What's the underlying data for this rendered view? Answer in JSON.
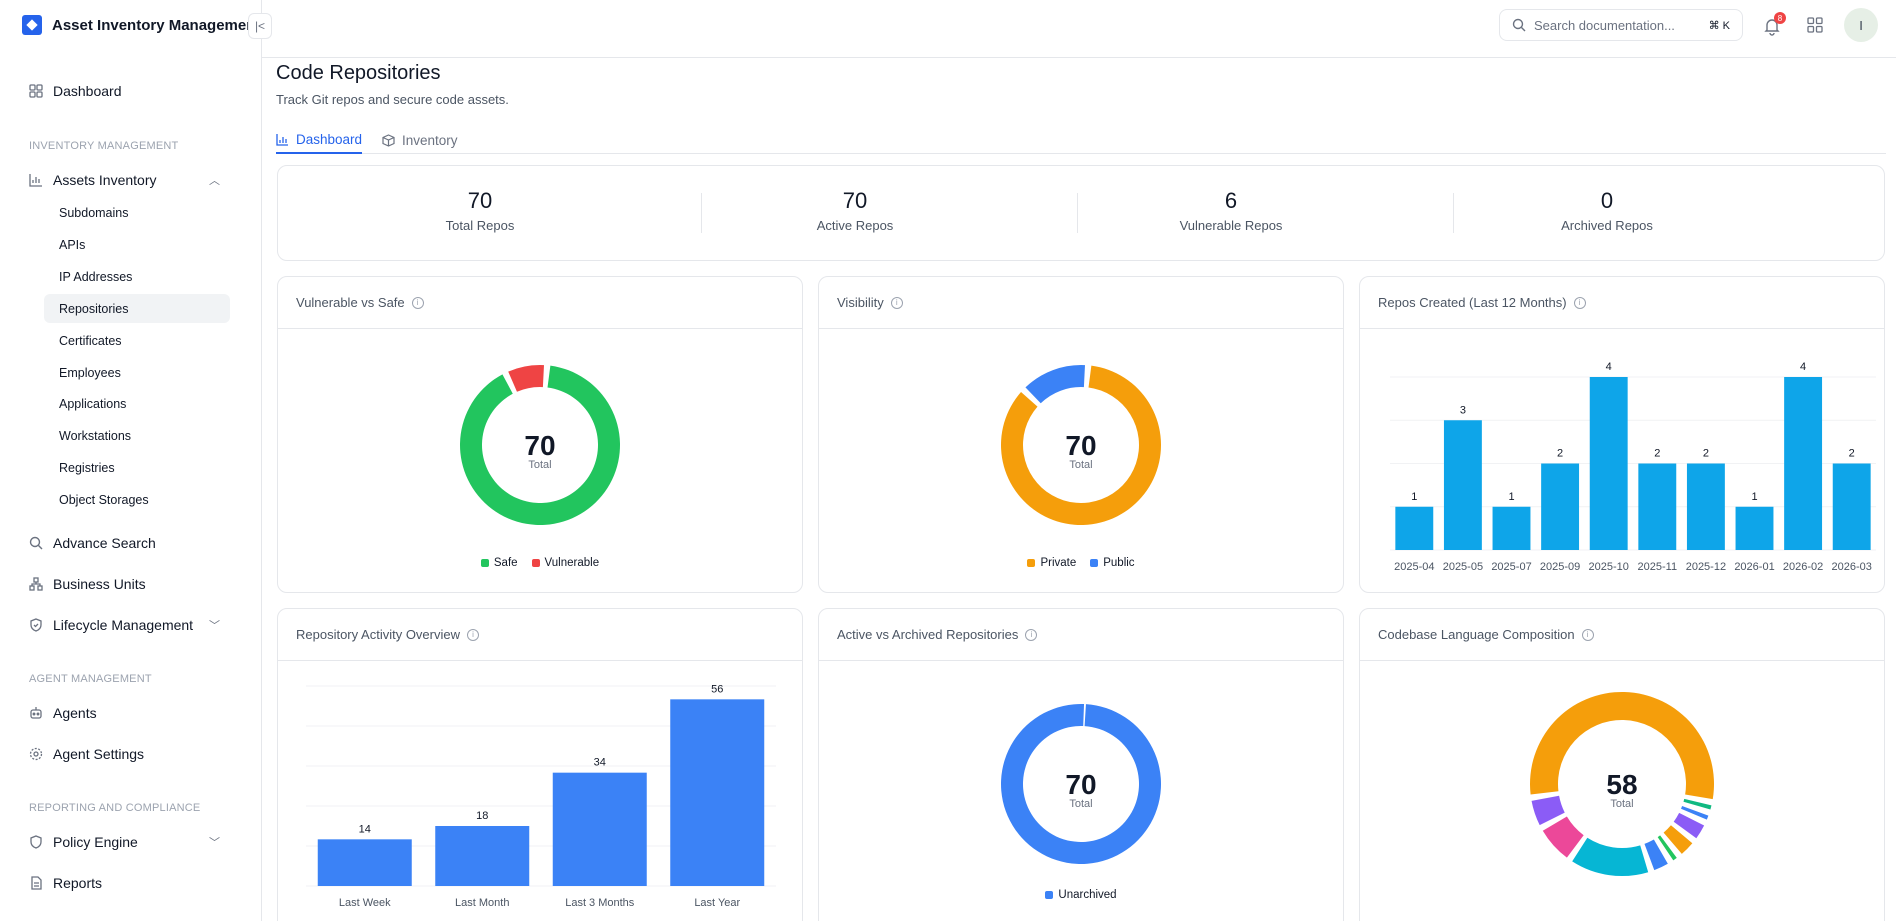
{
  "app": {
    "title": "Asset Inventory Management"
  },
  "sidebar": {
    "dashboard": "Dashboard",
    "sections": {
      "inventory": "INVENTORY MANAGEMENT",
      "agent": "AGENT MANAGEMENT",
      "reporting": "REPORTING AND COMPLIANCE"
    },
    "assets_inventory": "Assets Inventory",
    "sub_items": [
      "Subdomains",
      "APIs",
      "IP Addresses",
      "Repositories",
      "Certificates",
      "Employees",
      "Applications",
      "Workstations",
      "Registries",
      "Object Storages"
    ],
    "active_sub_item": "Repositories",
    "advance_search": "Advance Search",
    "business_units": "Business Units",
    "lifecycle": "Lifecycle Management",
    "agents": "Agents",
    "agent_settings": "Agent Settings",
    "policy_engine": "Policy Engine",
    "reports": "Reports"
  },
  "header": {
    "search_placeholder": "Search documentation...",
    "shortcut": "⌘ K",
    "notification_count": "8",
    "avatar_initial": "I"
  },
  "page": {
    "title": "Code Repositories",
    "subtitle": "Track Git repos and secure code assets.",
    "tabs": [
      "Dashboard",
      "Inventory"
    ]
  },
  "stats": [
    {
      "value": "70",
      "label": "Total Repos"
    },
    {
      "value": "70",
      "label": "Active Repos"
    },
    {
      "value": "6",
      "label": "Vulnerable Repos"
    },
    {
      "value": "0",
      "label": "Archived Repos"
    }
  ],
  "cards": {
    "vuln": "Vulnerable vs Safe",
    "visibility": "Visibility",
    "created": "Repos Created (Last 12 Months)",
    "activity": "Repository Activity Overview",
    "archived": "Active vs Archived Repositories",
    "language": "Codebase Language Composition"
  },
  "colors": {
    "accent": "#2563eb",
    "green": "#22c55e",
    "red": "#ef4444",
    "orange": "#f59e0b",
    "blue": "#3b82f6",
    "sky": "#0ea5e9"
  },
  "chart_data": [
    {
      "type": "pie",
      "title": "Vulnerable vs Safe",
      "center_value": "70",
      "center_label": "Total",
      "labels": [
        "Safe",
        "Vulnerable"
      ],
      "values": [
        64,
        6
      ],
      "colors": [
        "#22c55e",
        "#ef4444"
      ]
    },
    {
      "type": "pie",
      "title": "Visibility",
      "center_value": "70",
      "center_label": "Total",
      "labels": [
        "Private",
        "Public"
      ],
      "values": [
        60,
        10
      ],
      "colors": [
        "#f59e0b",
        "#3b82f6"
      ]
    },
    {
      "type": "bar",
      "title": "Repos Created (Last 12 Months)",
      "categories": [
        "2025-04",
        "2025-05",
        "2025-07",
        "2025-09",
        "2025-10",
        "2025-11",
        "2025-12",
        "2026-01",
        "2026-02",
        "2026-03"
      ],
      "values": [
        1,
        3,
        1,
        2,
        4,
        2,
        2,
        1,
        4,
        2
      ],
      "ylim": [
        0,
        4
      ],
      "color": "#0ea5e9"
    },
    {
      "type": "bar",
      "title": "Repository Activity Overview",
      "categories": [
        "Last Week",
        "Last Month",
        "Last 3 Months",
        "Last Year"
      ],
      "values": [
        14,
        18,
        34,
        56
      ],
      "ylim": [
        0,
        60
      ],
      "color": "#3b82f6"
    },
    {
      "type": "pie",
      "title": "Active vs Archived Repositories",
      "center_value": "70",
      "center_label": "Total",
      "labels": [
        "Unarchived"
      ],
      "values": [
        70
      ],
      "colors": [
        "#3b82f6"
      ]
    },
    {
      "type": "pie",
      "title": "Codebase Language Composition",
      "center_value": "58",
      "center_label": "Total",
      "values": [
        30,
        1,
        1,
        2,
        2,
        1,
        2,
        8,
        4,
        3
      ],
      "colors": [
        "#f59e0b",
        "#10b981",
        "#3b82f6",
        "#8b5cf6",
        "#f59e0b",
        "#22c55e",
        "#3b82f6",
        "#06b6d4",
        "#ec4899",
        "#8b5cf6"
      ]
    }
  ]
}
